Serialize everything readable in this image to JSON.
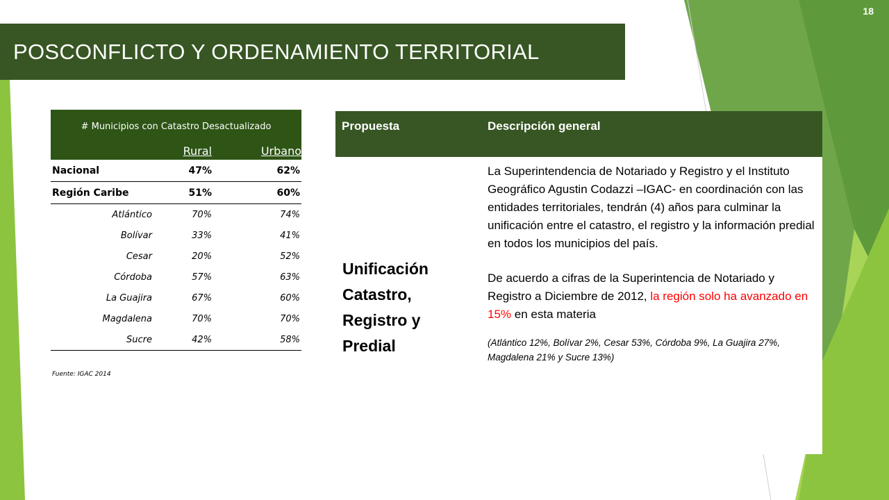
{
  "slide": {
    "number": "18",
    "title": "POSCONFLICTO Y ORDENAMIENTO TERRITORIAL"
  },
  "municipios_table": {
    "header": "# Municipios con Catastro Desactualizado",
    "col_rural": "Rural",
    "col_urbano": "Urbano",
    "rows": [
      {
        "label": "Nacional",
        "rural": "47%",
        "urbano": "62%"
      },
      {
        "label": "Región Caribe",
        "rural": "51%",
        "urbano": "60%"
      },
      {
        "label": "Atlántico",
        "rural": "70%",
        "urbano": "74%"
      },
      {
        "label": "Bolívar",
        "rural": "33%",
        "urbano": "41%"
      },
      {
        "label": "Cesar",
        "rural": "20%",
        "urbano": "52%"
      },
      {
        "label": "Córdoba",
        "rural": "57%",
        "urbano": "63%"
      },
      {
        "label": "La Guajira",
        "rural": "67%",
        "urbano": "60%"
      },
      {
        "label": "Magdalena",
        "rural": "70%",
        "urbano": "70%"
      },
      {
        "label": "Sucre",
        "rural": "42%",
        "urbano": "58%"
      }
    ],
    "source": "Fuente: IGAC 2014"
  },
  "proposal_table": {
    "col_propuesta": "Propuesta",
    "col_descripcion": "Descripción general",
    "propuesta": "Unificación Catastro, Registro y Predial",
    "desc_p1": "La Superintendencia de Notariado y Registro y el Instituto Geográfico Agustin Codazzi –IGAC- en coordinación con las entidades territoriales, tendrán (4) años para culminar la unificación entre el catastro, el registro y la información predial en todos los municipios del país.",
    "desc_p2_a": "De acuerdo a cifras de la Superintencia de Notariado y Registro a Diciembre de 2012, ",
    "desc_p2_red": "la región solo ha avanzado en 15%",
    "desc_p2_b": " en esta materia",
    "desc_p3": "(Atlántico 12%, Bolívar 2%, Cesar 53%, Córdoba 9%, La Guajira 27%, Magdalena 21% y Sucre 13%)"
  },
  "colors": {
    "header_green": "#375623",
    "table_header_green": "#2e5416",
    "highlight_red": "#ff0000",
    "deco_light_green": "#92d050",
    "deco_mid_green": "#70ad47"
  }
}
